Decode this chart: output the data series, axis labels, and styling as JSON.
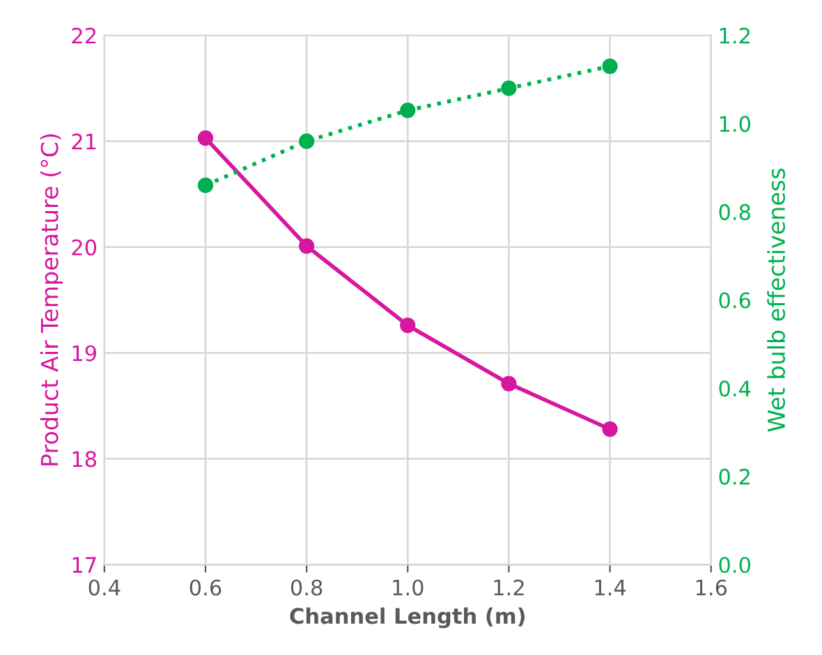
{
  "chart_data": {
    "type": "line",
    "xlabel": "Channel Length (m)",
    "ylabel": "Product Air Temperature (°C)",
    "y2label": "Wet bulb effectiveness",
    "x": [
      0.6,
      0.8,
      1.0,
      1.2,
      1.4
    ],
    "series": [
      {
        "color": "#d6179f",
        "values": [
          21.03,
          20.01,
          19.26,
          18.71,
          18.28
        ],
        "line_style": "solid",
        "marker": "circle"
      },
      {
        "color": "#00b050",
        "values": [
          0.86,
          0.96,
          1.03,
          1.08,
          1.13
        ],
        "axis": "y2",
        "line_style": "dotted",
        "marker": "circle"
      }
    ],
    "xlim": [
      0.4,
      1.6
    ],
    "xticks": [
      {
        "value": 0.4,
        "label": "0.4"
      },
      {
        "value": 0.6,
        "label": "0.6"
      },
      {
        "value": 0.8,
        "label": "0.8"
      },
      {
        "value": 1.0,
        "label": "1.0"
      },
      {
        "value": 1.2,
        "label": "1.2"
      },
      {
        "value": 1.4,
        "label": "1.4"
      },
      {
        "value": 1.6,
        "label": "1.6"
      }
    ],
    "ylim": [
      17,
      22
    ],
    "yticks": [
      17,
      18,
      19,
      20,
      21,
      22
    ],
    "y2lim": [
      0,
      1.2
    ],
    "y2ticks": [
      {
        "value": 0,
        "label": "0.0"
      },
      {
        "value": 0.2,
        "label": "0.2"
      },
      {
        "value": 0.4,
        "label": "0.4"
      },
      {
        "value": 0.6,
        "label": "0.6"
      },
      {
        "value": 0.8,
        "label": "0.8"
      },
      {
        "value": 1.0,
        "label": "1.0"
      },
      {
        "value": 1.2,
        "label": "1.2"
      }
    ],
    "grid": true,
    "legend": false
  }
}
